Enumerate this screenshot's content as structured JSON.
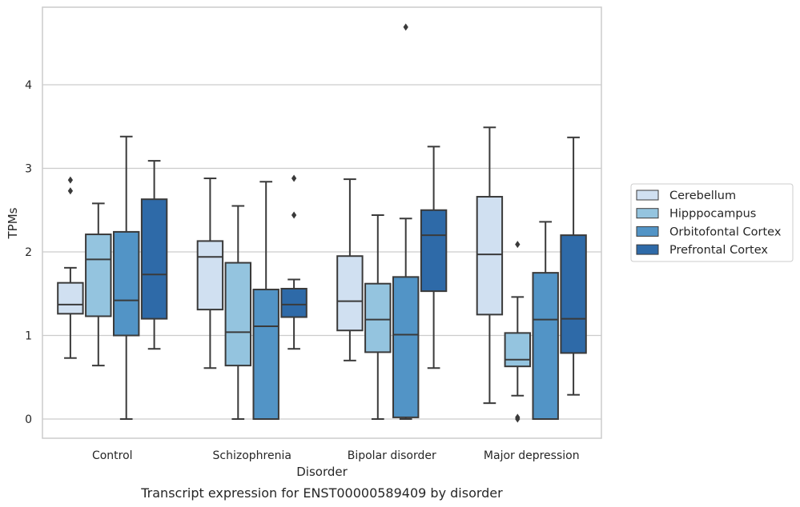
{
  "chart_data": {
    "type": "boxplot",
    "caption": "Transcript expression for ENST00000589409 by disorder",
    "xlabel": "Disorder",
    "ylabel": "TPMs",
    "ylim": [
      -0.22,
      4.93
    ],
    "yticks": [
      0,
      1,
      2,
      3,
      4
    ],
    "grid": true,
    "legend_position": "right",
    "categories": [
      "Control",
      "Schizophrenia",
      "Bipolar disorder",
      "Major depression"
    ],
    "series": [
      {
        "name": "Cerebellum",
        "color": "#d0e0f1",
        "boxes": [
          {
            "whisker_low": 0.73,
            "q1": 1.26,
            "median": 1.37,
            "q3": 1.63,
            "whisker_high": 1.81,
            "outliers": [
              2.73,
              2.86
            ]
          },
          {
            "whisker_low": 0.61,
            "q1": 1.31,
            "median": 1.94,
            "q3": 2.13,
            "whisker_high": 2.88,
            "outliers": []
          },
          {
            "whisker_low": 0.7,
            "q1": 1.06,
            "median": 1.41,
            "q3": 1.95,
            "whisker_high": 2.87,
            "outliers": []
          },
          {
            "whisker_low": 0.19,
            "q1": 1.25,
            "median": 1.97,
            "q3": 2.66,
            "whisker_high": 3.49,
            "outliers": []
          }
        ]
      },
      {
        "name": "Hipppocampus",
        "color": "#94c4df",
        "boxes": [
          {
            "whisker_low": 0.64,
            "q1": 1.23,
            "median": 1.91,
            "q3": 2.21,
            "whisker_high": 2.58,
            "outliers": []
          },
          {
            "whisker_low": 0.0,
            "q1": 0.64,
            "median": 1.04,
            "q3": 1.87,
            "whisker_high": 2.55,
            "outliers": []
          },
          {
            "whisker_low": 0.0,
            "q1": 0.8,
            "median": 1.19,
            "q3": 1.62,
            "whisker_high": 2.44,
            "outliers": []
          },
          {
            "whisker_low": 0.28,
            "q1": 0.63,
            "median": 0.71,
            "q3": 1.03,
            "whisker_high": 1.46,
            "outliers": [
              0.0,
              0.02,
              2.09
            ]
          }
        ]
      },
      {
        "name": "Orbitofontal Cortex",
        "color": "#5294c6",
        "boxes": [
          {
            "whisker_low": 0.0,
            "q1": 1.0,
            "median": 1.42,
            "q3": 2.24,
            "whisker_high": 3.38,
            "outliers": []
          },
          {
            "whisker_low": 0.0,
            "q1": 0.0,
            "median": 1.11,
            "q3": 1.55,
            "whisker_high": 2.84,
            "outliers": []
          },
          {
            "whisker_low": 0.0,
            "q1": 0.02,
            "median": 1.01,
            "q3": 1.7,
            "whisker_high": 2.4,
            "outliers": [
              4.69
            ]
          },
          {
            "whisker_low": 0.0,
            "q1": 0.0,
            "median": 1.19,
            "q3": 1.75,
            "whisker_high": 2.36,
            "outliers": []
          }
        ]
      },
      {
        "name": "Prefrontal Cortex",
        "color": "#2e6aa8",
        "boxes": [
          {
            "whisker_low": 0.84,
            "q1": 1.2,
            "median": 1.73,
            "q3": 2.63,
            "whisker_high": 3.09,
            "outliers": []
          },
          {
            "whisker_low": 0.84,
            "q1": 1.22,
            "median": 1.37,
            "q3": 1.56,
            "whisker_high": 1.67,
            "outliers": [
              2.44,
              2.88
            ]
          },
          {
            "whisker_low": 0.61,
            "q1": 1.53,
            "median": 2.2,
            "q3": 2.5,
            "whisker_high": 3.26,
            "outliers": []
          },
          {
            "whisker_low": 0.29,
            "q1": 0.79,
            "median": 1.2,
            "q3": 2.2,
            "whisker_high": 3.37,
            "outliers": []
          }
        ]
      }
    ]
  }
}
